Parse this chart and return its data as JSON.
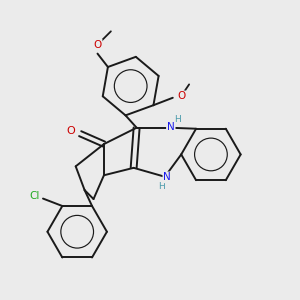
{
  "background_color": "#ebebeb",
  "bond_color": "#1a1a1a",
  "bond_width": 1.4,
  "figsize": [
    3.0,
    3.0
  ],
  "dpi": 100,
  "colors": {
    "C": "#1a1a1a",
    "N": "#1a1aee",
    "N_H": "#4a9aaa",
    "O": "#cc0000",
    "Cl": "#22aa22",
    "bond": "#1a1a1a"
  }
}
